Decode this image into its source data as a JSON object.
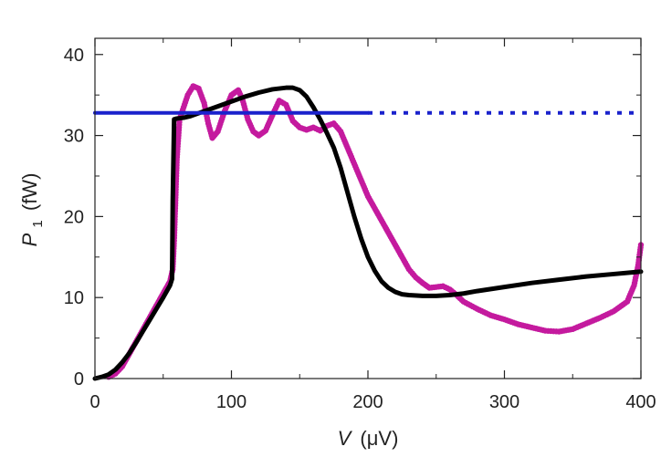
{
  "chart_data": {
    "type": "line",
    "title": "",
    "xlabel": {
      "var": "V",
      "unit": "(μV)"
    },
    "ylabel": {
      "var": "P",
      "sub": "1",
      "unit": "(fW)"
    },
    "xlim": [
      0,
      400
    ],
    "ylim": [
      0,
      42
    ],
    "xticks": [
      0,
      100,
      200,
      300,
      400
    ],
    "yticks": [
      0,
      10,
      20,
      30,
      40
    ],
    "x_minor_ticks": [
      50,
      150,
      250,
      350
    ],
    "y_minor_ticks": [
      5,
      15,
      25,
      35
    ],
    "grid": false,
    "legend": "none",
    "series": [
      {
        "style": "dots",
        "color": "#c41a9e",
        "x": [
          10,
          15,
          20,
          25,
          30,
          35,
          40,
          45,
          50,
          55,
          57,
          58,
          60,
          62,
          65,
          68,
          72,
          76,
          80,
          83,
          86,
          90,
          95,
          100,
          105,
          108,
          112,
          116,
          120,
          125,
          130,
          135,
          140,
          145,
          150,
          155,
          160,
          165,
          170,
          175,
          180,
          185,
          190,
          195,
          200,
          205,
          210,
          215,
          220,
          225,
          230,
          235,
          240,
          245,
          250,
          255,
          260,
          265,
          270,
          280,
          290,
          300,
          310,
          320,
          330,
          340,
          350,
          360,
          370,
          380,
          390,
          395,
          398,
          400
        ],
        "y": [
          0.2,
          0.6,
          1.5,
          3.0,
          4.5,
          6.0,
          7.5,
          9.0,
          10.5,
          12.0,
          13.5,
          17.0,
          27.0,
          32.0,
          33.5,
          35.0,
          36.1,
          35.8,
          34.0,
          31.5,
          29.7,
          30.5,
          33.0,
          35.0,
          35.6,
          34.5,
          32.0,
          30.5,
          30.0,
          30.6,
          32.5,
          34.3,
          33.8,
          31.8,
          31.0,
          30.7,
          31.0,
          30.6,
          31.2,
          31.5,
          30.5,
          28.5,
          26.5,
          24.5,
          22.5,
          21.0,
          19.5,
          18.0,
          16.5,
          15.0,
          13.5,
          12.5,
          11.8,
          11.2,
          11.3,
          11.4,
          11.0,
          10.3,
          9.5,
          8.6,
          7.8,
          7.3,
          6.7,
          6.3,
          5.9,
          5.8,
          6.1,
          6.8,
          7.5,
          8.3,
          9.5,
          11.5,
          14.0,
          16.5
        ]
      },
      {
        "style": "line",
        "color": "#000000",
        "x": [
          0,
          5,
          10,
          15,
          20,
          25,
          30,
          35,
          40,
          45,
          50,
          55,
          56.5,
          57,
          58,
          60,
          65,
          70,
          80,
          90,
          100,
          110,
          120,
          130,
          140,
          145,
          150,
          155,
          160,
          165,
          170,
          175,
          180,
          185,
          190,
          195,
          200,
          205,
          210,
          215,
          220,
          225,
          230,
          240,
          250,
          260,
          270,
          280,
          300,
          320,
          340,
          360,
          380,
          400
        ],
        "y": [
          0.0,
          0.2,
          0.5,
          1.1,
          2.0,
          3.1,
          4.4,
          5.8,
          7.2,
          8.6,
          10.0,
          11.5,
          12.3,
          22.0,
          32.0,
          32.1,
          32.2,
          32.4,
          33.0,
          33.6,
          34.2,
          34.8,
          35.3,
          35.7,
          35.9,
          35.9,
          35.6,
          34.8,
          33.5,
          32.0,
          30.3,
          28.5,
          26.0,
          23.0,
          20.0,
          17.3,
          15.0,
          13.3,
          12.0,
          11.2,
          10.7,
          10.4,
          10.3,
          10.2,
          10.2,
          10.3,
          10.5,
          10.8,
          11.3,
          11.8,
          12.2,
          12.6,
          12.9,
          13.2
        ]
      },
      {
        "style": "solid-line",
        "color": "#1a22cc",
        "x": [
          0,
          200
        ],
        "y": [
          32.8,
          32.8
        ]
      },
      {
        "style": "dotted-line",
        "color": "#1a22cc",
        "x": [
          200,
          400
        ],
        "y": [
          32.8,
          32.8
        ]
      }
    ]
  }
}
